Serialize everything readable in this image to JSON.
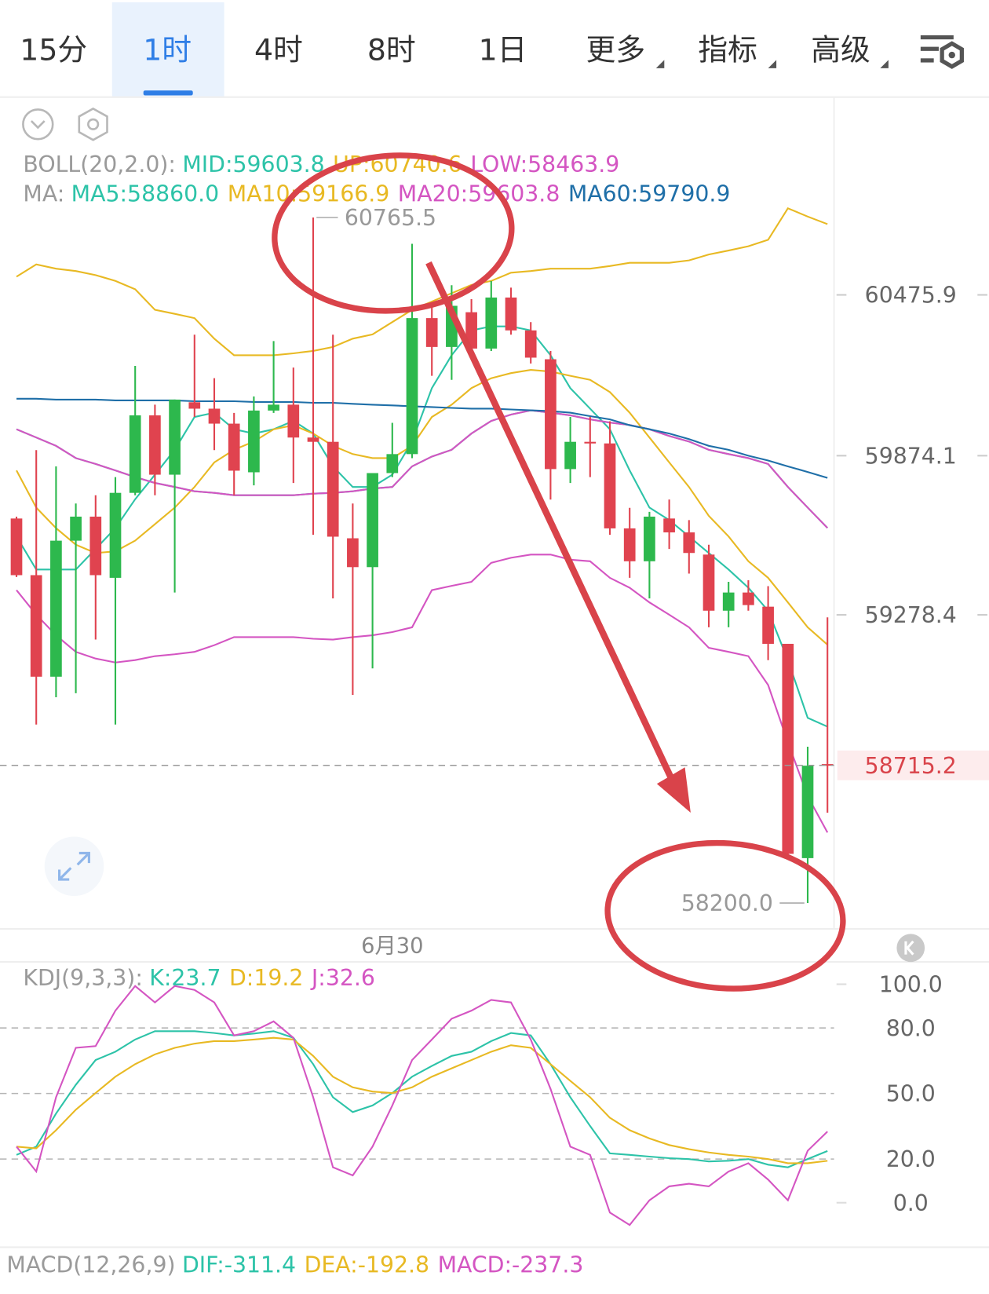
{
  "toolbar": {
    "tabs": [
      "15分",
      "1时",
      "4时",
      "8时",
      "1日",
      "更多",
      "指标",
      "高级"
    ],
    "selected": 1
  },
  "chart_data": [
    {
      "type": "candlestick",
      "categories": [
        null,
        null,
        null,
        null,
        null,
        null,
        null,
        null,
        null,
        null,
        null,
        null,
        null,
        null,
        null,
        null,
        null,
        null,
        null,
        "6月30",
        null,
        null,
        null,
        null,
        null,
        null,
        null,
        null,
        null,
        null,
        null,
        null,
        null,
        null,
        null,
        null,
        null,
        null,
        null,
        null,
        null,
        null
      ],
      "candles": {
        "open": [
          59639,
          59427,
          59047,
          59556,
          59646,
          59417,
          59735,
          60025,
          59803,
          60074,
          60050,
          59994,
          59812,
          60043,
          60065,
          59942,
          59926,
          59565,
          59457,
          59809,
          59880,
          60389,
          60281,
          60411,
          60275,
          60466,
          60343,
          60235,
          59824,
          59926,
          59920,
          59602,
          59479,
          59639,
          59587,
          59504,
          59294,
          59362,
          59309,
          59170,
          58368,
          58720
        ],
        "high": [
          59646,
          59895,
          59834,
          59695,
          59726,
          59794,
          60210,
          60065,
          60084,
          60327,
          60164,
          60034,
          60096,
          60303,
          60204,
          60765.5,
          60327,
          59695,
          59794,
          59997,
          60667,
          60435,
          60512,
          60460,
          60528,
          60503,
          60374,
          60266,
          60019,
          60019,
          60003,
          59679,
          59664,
          59710,
          59633,
          59541,
          59402,
          59408,
          59386,
          59170,
          58785,
          59269
        ],
        "low": [
          59420,
          58868,
          58970,
          58985,
          59186,
          58868,
          59726,
          59726,
          59362,
          60019,
          59895,
          59726,
          59763,
          60034,
          59772,
          59578,
          59340,
          58979,
          59078,
          59794,
          59865,
          60173,
          60158,
          60235,
          60266,
          60327,
          60219,
          59710,
          59772,
          59794,
          59578,
          59417,
          59340,
          59525,
          59433,
          59232,
          59232,
          59294,
          59109,
          58368,
          58200,
          58538
        ],
        "close": [
          59427,
          59047,
          59556,
          59646,
          59427,
          59735,
          60025,
          59803,
          60084,
          60050,
          59994,
          59818,
          60043,
          60065,
          59942,
          59926,
          59571,
          59457,
          59809,
          59880,
          60389,
          60281,
          60435,
          60275,
          60466,
          60343,
          60241,
          59824,
          59926,
          59920,
          59602,
          59479,
          59646,
          59587,
          59510,
          59294,
          59362,
          59315,
          59170,
          58384,
          58714,
          58715.2
        ]
      },
      "up_color": "#2db84d",
      "down_color": "#e0434f",
      "ylim": [
        58106,
        61213
      ],
      "yticks": [
        60475.9,
        59874.1,
        59278.4
      ],
      "current_price": 58715.2,
      "high_marker": 60765.5,
      "low_marker": {
        "value": 58200,
        "label": "58200.0"
      },
      "indicators": [
        {
          "label": "BOLL(20,2.0):",
          "series": [
            {
              "name": "MID:59603.8",
              "color": "#2dc3a8",
              "values": [
                59973,
                59942,
                59911,
                59865,
                59843,
                59819,
                59794,
                59772,
                59757,
                59741,
                59735,
                59726,
                59726,
                59726,
                59726,
                59732,
                59735,
                59741,
                59751,
                59757,
                59834,
                59871,
                59896,
                59957,
                60004,
                60028,
                60044,
                60035,
                60025,
                60010,
                59998,
                59989,
                59973,
                59948,
                59927,
                59896,
                59880,
                59865,
                59843,
                59757,
                59680,
                59603.8
              ]
            },
            {
              "name": "UP:60740.6",
              "color": "#e8b923",
              "values": [
                60544,
                60590,
                60574,
                60565,
                60550,
                60528,
                60497,
                60420,
                60405,
                60389,
                60312,
                60250,
                60250,
                60250,
                60257,
                60266,
                60281,
                60312,
                60328,
                60374,
                60420,
                60451,
                60482,
                60513,
                60528,
                60559,
                60565,
                60574,
                60574,
                60574,
                60584,
                60596,
                60596,
                60596,
                60605,
                60627,
                60642,
                60658,
                60682,
                60800,
                60769,
                60740.6
              ]
            },
            {
              "name": "LOW:58463.9",
              "color": "#d455c2",
              "values": [
                59371,
                59279,
                59202,
                59140,
                59115,
                59100,
                59109,
                59124,
                59131,
                59140,
                59165,
                59195,
                59195,
                59195,
                59195,
                59189,
                59186,
                59195,
                59202,
                59214,
                59232,
                59371,
                59387,
                59402,
                59473,
                59492,
                59504,
                59504,
                59485,
                59479,
                59417,
                59380,
                59325,
                59279,
                59232,
                59155,
                59140,
                59124,
                59016,
                58801,
                58600,
                58463.9
              ]
            }
          ]
        },
        {
          "label": "MA:",
          "series": [
            {
              "name": "MA5:58860.0",
              "color": "#2dc3a8",
              "values": [
                59572,
                59448,
                59448,
                59448,
                59525,
                59603,
                59711,
                59803,
                59896,
                60019,
                60035,
                59973,
                59957,
                59973,
                60004,
                59957,
                59834,
                59757,
                59757,
                59803,
                59927,
                60127,
                60250,
                60343,
                60358,
                60358,
                60343,
                60250,
                60127,
                60050,
                59973,
                59819,
                59680,
                59633,
                59572,
                59510,
                59448,
                59380,
                59294,
                59109,
                58893,
                58860.0
              ]
            },
            {
              "name": "MA10:59166.9",
              "color": "#e8b923",
              "values": [
                59819,
                59680,
                59603,
                59541,
                59510,
                59516,
                59556,
                59618,
                59680,
                59757,
                59849,
                59896,
                59927,
                59973,
                59988,
                59957,
                59911,
                59880,
                59865,
                59865,
                59911,
                60019,
                60065,
                60127,
                60164,
                60183,
                60195,
                60189,
                60173,
                60158,
                60112,
                60035,
                59942,
                59849,
                59757,
                59649,
                59572,
                59479,
                59417,
                59325,
                59232,
                59166.9
              ]
            },
            {
              "name": "MA20:59603.8",
              "color": "#d455c2",
              "values": [
                59973,
                59942,
                59911,
                59865,
                59843,
                59819,
                59794,
                59772,
                59757,
                59741,
                59735,
                59726,
                59726,
                59726,
                59726,
                59732,
                59735,
                59741,
                59751,
                59757,
                59834,
                59871,
                59896,
                59957,
                60004,
                60028,
                60044,
                60035,
                60025,
                60010,
                59998,
                59989,
                59973,
                59948,
                59927,
                59896,
                59880,
                59865,
                59843,
                59757,
                59680,
                59603.8
              ]
            },
            {
              "name": "MA60:59790.9",
              "color": "#1f6fa8",
              "values": [
                60087,
                60087,
                60084,
                60084,
                60084,
                60081,
                60081,
                60081,
                60081,
                60078,
                60078,
                60078,
                60075,
                60075,
                60075,
                60072,
                60072,
                60068,
                60065,
                60062,
                60059,
                60056,
                60053,
                60050,
                60050,
                60047,
                60044,
                60041,
                60035,
                60022,
                60010,
                59988,
                59973,
                59957,
                59936,
                59911,
                59896,
                59874,
                59856,
                59834,
                59813,
                59790.9
              ]
            }
          ]
        }
      ]
    },
    {
      "type": "line",
      "ylim": [
        -19.6,
        108.7
      ],
      "yticks": [
        {
          "value": 100,
          "label": "100.0"
        },
        {
          "value": 80,
          "label": "80.0"
        },
        {
          "value": 50,
          "label": "50.0"
        },
        {
          "value": 20,
          "label": "20.0"
        },
        {
          "value": 0,
          "label": "0.0"
        }
      ],
      "grid": "dashed",
      "indicators": [
        {
          "label": "KDJ(9,3,3):",
          "series": [
            {
              "name": "K:23.7",
              "color": "#2dc3a8",
              "values": [
                21.9,
                25.7,
                40.8,
                54.0,
                65.3,
                69.1,
                74.7,
                78.5,
                78.5,
                78.5,
                77.7,
                76.6,
                77.4,
                78.5,
                75.5,
                63.4,
                48.3,
                41.5,
                44.5,
                50.2,
                57.7,
                62.6,
                67.2,
                69.1,
                74.0,
                77.7,
                76.6,
                63.4,
                48.3,
                35.1,
                22.6,
                21.9,
                21.1,
                20.4,
                20.0,
                18.9,
                19.2,
                20.0,
                17.4,
                16.2,
                20.0,
                23.7
              ]
            },
            {
              "name": "D:19.2",
              "color": "#e8b923",
              "values": [
                25.7,
                24.9,
                33.2,
                42.6,
                50.2,
                57.7,
                63.4,
                67.9,
                70.9,
                72.8,
                74.0,
                74.0,
                74.7,
                75.5,
                74.7,
                67.2,
                57.7,
                52.8,
                50.9,
                50.2,
                52.8,
                57.7,
                61.5,
                65.3,
                69.1,
                72.1,
                70.9,
                63.4,
                55.8,
                48.3,
                38.9,
                33.2,
                29.4,
                26.4,
                24.5,
                23.0,
                21.9,
                21.1,
                20.0,
                18.1,
                18.1,
                19.2
              ]
            },
            {
              "name": "J:32.6",
              "color": "#d455c2",
              "values": [
                25.7,
                14.3,
                48.3,
                70.9,
                71.7,
                87.9,
                99.2,
                91.7,
                99.2,
                97.4,
                91.7,
                76.6,
                78.5,
                83.0,
                75.5,
                48.3,
                16.2,
                12.5,
                25.7,
                44.5,
                65.3,
                74.7,
                84.2,
                87.9,
                92.8,
                91.7,
                74.7,
                52.1,
                25.7,
                21.9,
                -4.5,
                -10.2,
                1.1,
                7.5,
                8.7,
                7.5,
                14.3,
                18.1,
                10.6,
                1.1,
                23.8,
                32.6
              ]
            }
          ]
        }
      ]
    }
  ],
  "macd_panel": {
    "label": "MACD(12,26,9)",
    "series": [
      {
        "name": "DIF:-311.4",
        "color": "#2dc3a8"
      },
      {
        "name": "DEA:-192.8",
        "color": "#e8b923"
      },
      {
        "name": "MACD:-237.3",
        "color": "#d455c2"
      }
    ]
  }
}
